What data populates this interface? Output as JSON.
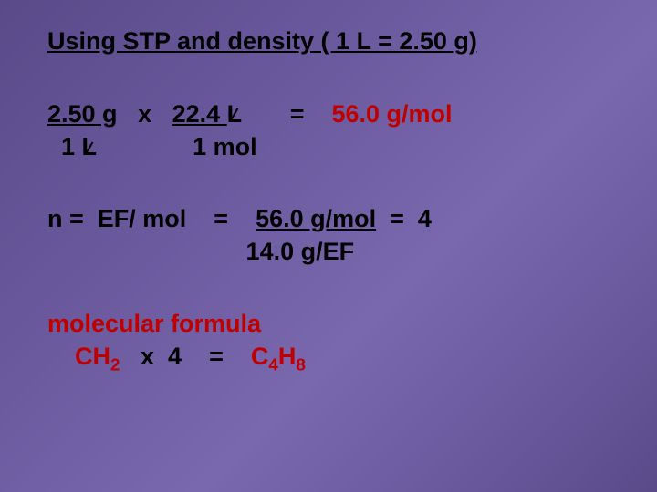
{
  "colors": {
    "text_primary": "#000000",
    "text_accent": "#c00000",
    "bg_gradient_stops": [
      "#5a4a8a",
      "#6b5a9e",
      "#7a68ae",
      "#6b5a9e",
      "#5a4a8a"
    ]
  },
  "typography": {
    "font_family": "Arial",
    "title_fontsize_pt": 27,
    "body_fontsize_pt": 27,
    "font_weight": "bold"
  },
  "title": "Using STP and density ( 1 L = 2.50 g)",
  "calc1": {
    "numerator_left": "2.50 g",
    "operator": "x",
    "numerator_right": "22.4 L",
    "equals": "=",
    "result": "56.0 g/mol",
    "denominator_left": "1 L",
    "denominator_right": "1 mol",
    "cancel_unit_1": "L",
    "cancel_unit_2": "L"
  },
  "calc2": {
    "lhs": "n =  EF/ mol",
    "equals": "=",
    "rhs_top": "56.0 g/mol",
    "rhs_top_after": "  =  4",
    "rhs_bottom": "14.0 g/EF"
  },
  "calc3": {
    "label": "molecular formula",
    "formula_prefix": "CH",
    "formula_sub1": "2",
    "times": "   x  4    =    ",
    "result_prefix": "C",
    "result_sub1": "4",
    "result_mid": "H",
    "result_sub2": "8"
  }
}
